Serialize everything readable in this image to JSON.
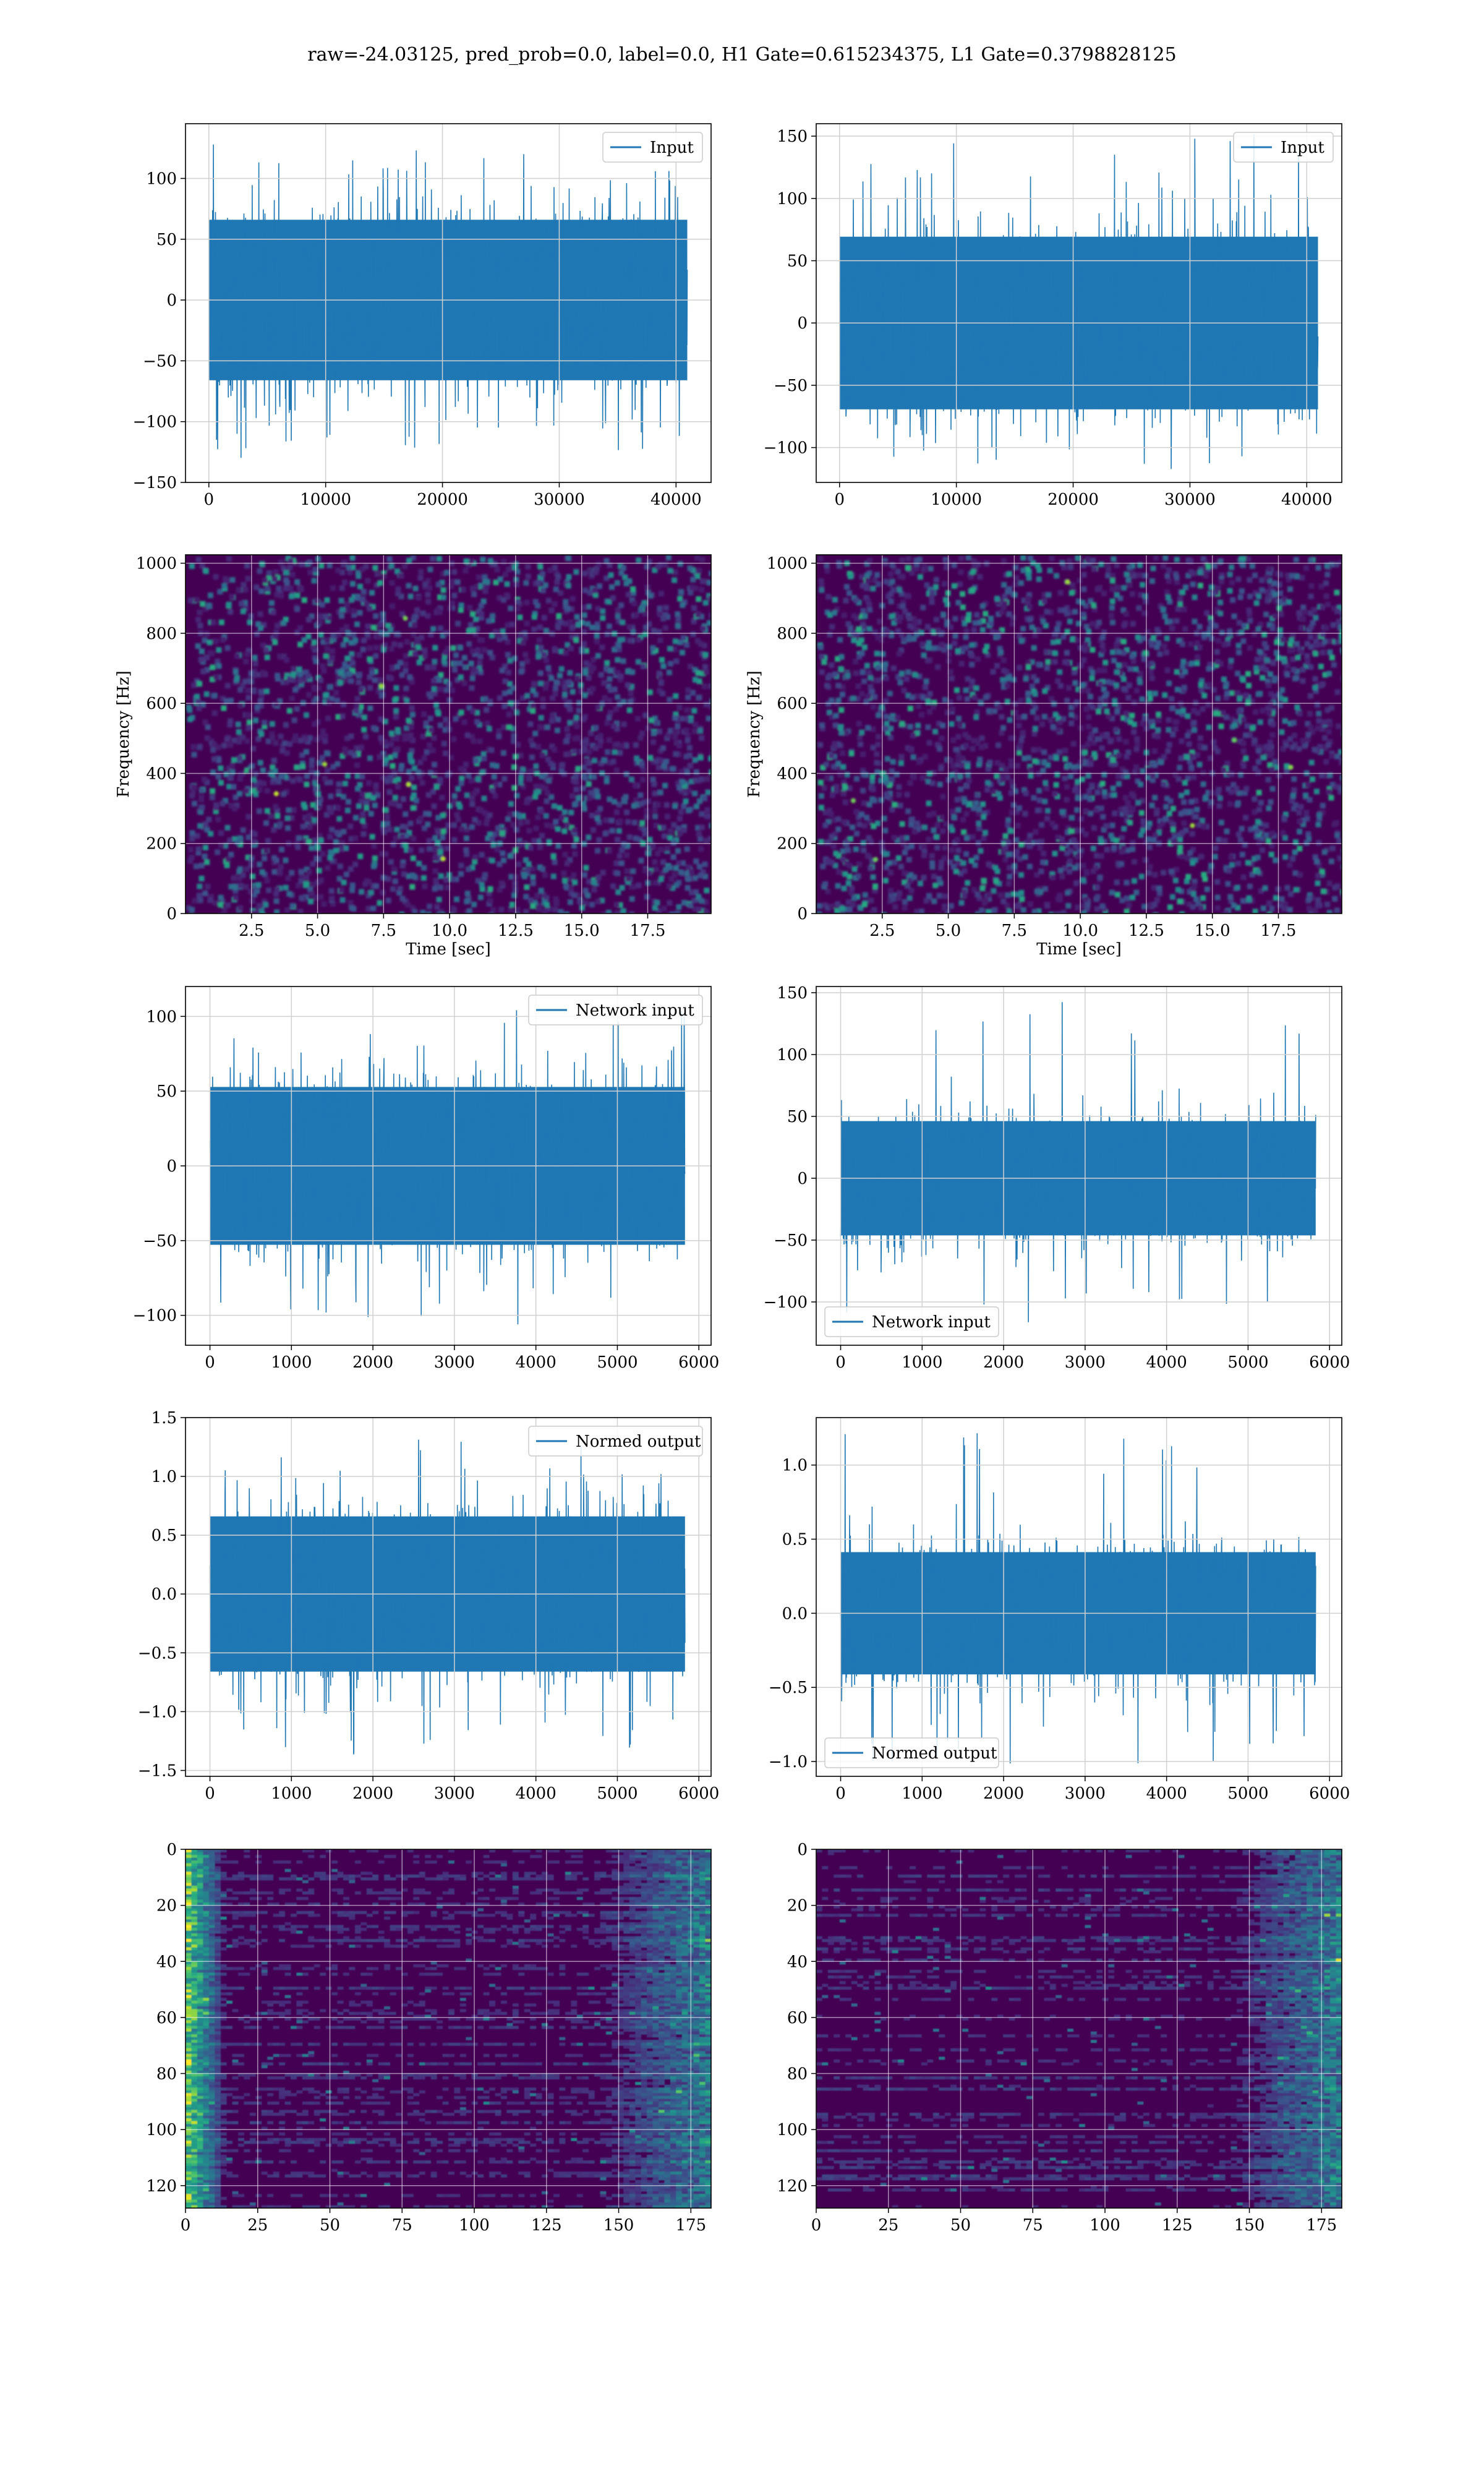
{
  "figure": {
    "title": "raw=-24.03125, pred_prob=0.0, label=0.0, H1 Gate=0.615234375, L1 Gate=0.3798828125"
  },
  "colors": {
    "line": "#1f77b4",
    "grid": "#d0d0d0",
    "axis": "#000000",
    "viridis_dark": "#440154",
    "viridis_mid": "#21918c",
    "viridis_light": "#fde725"
  },
  "chart_data": [
    {
      "id": "input-h1",
      "type": "line",
      "row": 0,
      "col": 0,
      "series": [
        {
          "name": "Input",
          "n": 40960,
          "amplitude": 40,
          "max": 135,
          "min": -135
        }
      ],
      "legend": "upper right",
      "xlim": [
        -2000,
        43000
      ],
      "ylim": [
        -150,
        145
      ],
      "xticks": [
        0,
        10000,
        20000,
        30000,
        40000
      ],
      "yticks": [
        -150,
        -100,
        -50,
        0,
        50,
        100
      ],
      "grid": true
    },
    {
      "id": "input-l1",
      "type": "line",
      "row": 0,
      "col": 1,
      "series": [
        {
          "name": "Input",
          "n": 40960,
          "amplitude": 42,
          "max": 152,
          "min": -120
        }
      ],
      "legend": "upper right",
      "xlim": [
        -2000,
        43000
      ],
      "ylim": [
        -128,
        160
      ],
      "xticks": [
        0,
        10000,
        20000,
        30000,
        40000
      ],
      "yticks": [
        -100,
        -50,
        0,
        50,
        100,
        150
      ],
      "grid": true
    },
    {
      "id": "spectrogram-h1",
      "type": "heatmap",
      "row": 1,
      "col": 0,
      "xlabel": "Time [sec]",
      "ylabel": "Frequency [Hz]",
      "xlim": [
        0,
        19.9
      ],
      "ylim": [
        0,
        1024
      ],
      "xticks": [
        2.5,
        5.0,
        7.5,
        10.0,
        12.5,
        15.0,
        17.5
      ],
      "xtick_labels": [
        "2.5",
        "5.0",
        "7.5",
        "10.0",
        "12.5",
        "15.0",
        "17.5"
      ],
      "yticks": [
        0,
        200,
        400,
        600,
        800,
        1000
      ],
      "colormap": "viridis",
      "grid": true
    },
    {
      "id": "spectrogram-l1",
      "type": "heatmap",
      "row": 1,
      "col": 1,
      "xlabel": "Time [sec]",
      "ylabel": "Frequency [Hz]",
      "xlim": [
        0,
        19.9
      ],
      "ylim": [
        0,
        1024
      ],
      "xticks": [
        2.5,
        5.0,
        7.5,
        10.0,
        12.5,
        15.0,
        17.5
      ],
      "xtick_labels": [
        "2.5",
        "5.0",
        "7.5",
        "10.0",
        "12.5",
        "15.0",
        "17.5"
      ],
      "yticks": [
        0,
        200,
        400,
        600,
        800,
        1000
      ],
      "colormap": "viridis",
      "grid": true
    },
    {
      "id": "network-input-h1",
      "type": "line",
      "row": 2,
      "col": 0,
      "series": [
        {
          "name": "Network input",
          "n": 5830,
          "amplitude": 32,
          "max": 107,
          "min": -110
        }
      ],
      "legend": "upper right",
      "xlim": [
        -300,
        6150
      ],
      "ylim": [
        -120,
        120
      ],
      "xticks": [
        0,
        1000,
        2000,
        3000,
        4000,
        5000,
        6000
      ],
      "yticks": [
        -100,
        -50,
        0,
        50,
        100
      ],
      "grid": true
    },
    {
      "id": "network-input-l1",
      "type": "line",
      "row": 2,
      "col": 1,
      "series": [
        {
          "name": "Network input",
          "n": 5830,
          "amplitude": 28,
          "max": 145,
          "min": -122
        }
      ],
      "legend": "lower left",
      "xlim": [
        -300,
        6150
      ],
      "ylim": [
        -135,
        155
      ],
      "xticks": [
        0,
        1000,
        2000,
        3000,
        4000,
        5000,
        6000
      ],
      "yticks": [
        -100,
        -50,
        0,
        50,
        100,
        150
      ],
      "grid": true
    },
    {
      "id": "normed-output-h1",
      "type": "line",
      "row": 3,
      "col": 0,
      "series": [
        {
          "name": "Normed output",
          "n": 5830,
          "amplitude": 0.4,
          "max": 1.33,
          "min": -1.38
        }
      ],
      "legend": "upper right",
      "xlim": [
        -300,
        6150
      ],
      "ylim": [
        -1.55,
        1.5
      ],
      "xticks": [
        0,
        1000,
        2000,
        3000,
        4000,
        5000,
        6000
      ],
      "yticks": [
        -1.5,
        -1.0,
        -0.5,
        0.0,
        0.5,
        1.0,
        1.5
      ],
      "ytick_labels": [
        "−1.5",
        "−1.0",
        "−0.5",
        "0.0",
        "0.5",
        "1.0",
        "1.5"
      ],
      "grid": true
    },
    {
      "id": "normed-output-l1",
      "type": "line",
      "row": 3,
      "col": 1,
      "series": [
        {
          "name": "Normed output",
          "n": 5830,
          "amplitude": 0.25,
          "max": 1.22,
          "min": -1.02
        }
      ],
      "legend": "lower left",
      "xlim": [
        -300,
        6150
      ],
      "ylim": [
        -1.1,
        1.32
      ],
      "xticks": [
        0,
        1000,
        2000,
        3000,
        4000,
        5000,
        6000
      ],
      "yticks": [
        -1.0,
        -0.5,
        0.0,
        0.5,
        1.0
      ],
      "ytick_labels": [
        "−1.0",
        "−0.5",
        "0.0",
        "0.5",
        "1.0"
      ],
      "grid": true
    },
    {
      "id": "feature-map-h1",
      "type": "heatmap",
      "row": 4,
      "col": 0,
      "xlim": [
        0,
        182
      ],
      "ylim": [
        128,
        0
      ],
      "xticks": [
        0,
        25,
        50,
        75,
        100,
        125,
        150,
        175
      ],
      "yticks": [
        0,
        20,
        40,
        60,
        80,
        100,
        120
      ],
      "colormap": "viridis",
      "grid": true
    },
    {
      "id": "feature-map-l1",
      "type": "heatmap",
      "row": 4,
      "col": 1,
      "xlim": [
        0,
        182
      ],
      "ylim": [
        128,
        0
      ],
      "xticks": [
        0,
        25,
        50,
        75,
        100,
        125,
        150,
        175
      ],
      "yticks": [
        0,
        20,
        40,
        60,
        80,
        100,
        120
      ],
      "colormap": "viridis",
      "grid": true
    }
  ]
}
